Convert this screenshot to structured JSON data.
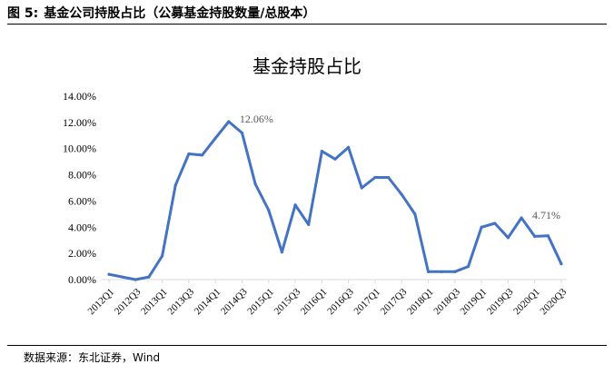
{
  "header": {
    "figure_number": "图 5:",
    "figure_title": "基金公司持股占比（公募基金持股数量/总股本）"
  },
  "source": "数据来源：东北证券，Wind",
  "chart_data": {
    "type": "line",
    "title": "基金持股占比",
    "xlabel": "",
    "ylabel": "",
    "ylim": [
      0,
      14
    ],
    "y_ticks": [
      0,
      2,
      4,
      6,
      8,
      10,
      12,
      14
    ],
    "y_tick_labels": [
      "0.00%",
      "2.00%",
      "4.00%",
      "6.00%",
      "8.00%",
      "10.00%",
      "12.00%",
      "14.00%"
    ],
    "grid": false,
    "legend": "none",
    "line_color": "#4472C4",
    "categories": [
      "2012Q1",
      "2012Q2",
      "2012Q3",
      "2012Q4",
      "2013Q1",
      "2013Q2",
      "2013Q3",
      "2013Q4",
      "2014Q1",
      "2014Q2",
      "2014Q3",
      "2014Q4",
      "2015Q1",
      "2015Q2",
      "2015Q3",
      "2015Q4",
      "2016Q1",
      "2016Q2",
      "2016Q3",
      "2016Q4",
      "2017Q1",
      "2017Q2",
      "2017Q3",
      "2017Q4",
      "2018Q1",
      "2018Q2",
      "2018Q3",
      "2018Q4",
      "2019Q1",
      "2019Q2",
      "2019Q3",
      "2019Q4",
      "2020Q1",
      "2020Q2",
      "2020Q3"
    ],
    "x_tick_labels": [
      "2012Q1",
      "2012Q3",
      "2013Q1",
      "2013Q3",
      "2014Q1",
      "2014Q3",
      "2015Q1",
      "2015Q3",
      "2016Q1",
      "2016Q3",
      "2017Q1",
      "2017Q3",
      "2018Q1",
      "2018Q3",
      "2019Q1",
      "2019Q3",
      "2020Q1",
      "2020Q3"
    ],
    "series": [
      {
        "values": [
          0.4,
          0.2,
          0.0,
          0.2,
          1.8,
          7.2,
          9.6,
          9.5,
          10.8,
          12.06,
          11.2,
          7.3,
          5.3,
          2.1,
          5.7,
          4.2,
          9.8,
          9.2,
          10.1,
          7.0,
          7.8,
          7.8,
          6.5,
          5.0,
          0.6,
          0.6,
          0.6,
          1.0,
          4.0,
          4.3,
          3.2,
          4.71,
          3.3,
          3.35,
          1.2
        ]
      }
    ],
    "annotations": [
      {
        "category": "2014Q2",
        "value": 12.06,
        "text": "12.06%"
      },
      {
        "category": "2019Q4",
        "value": 4.71,
        "text": "4.71%"
      }
    ]
  }
}
